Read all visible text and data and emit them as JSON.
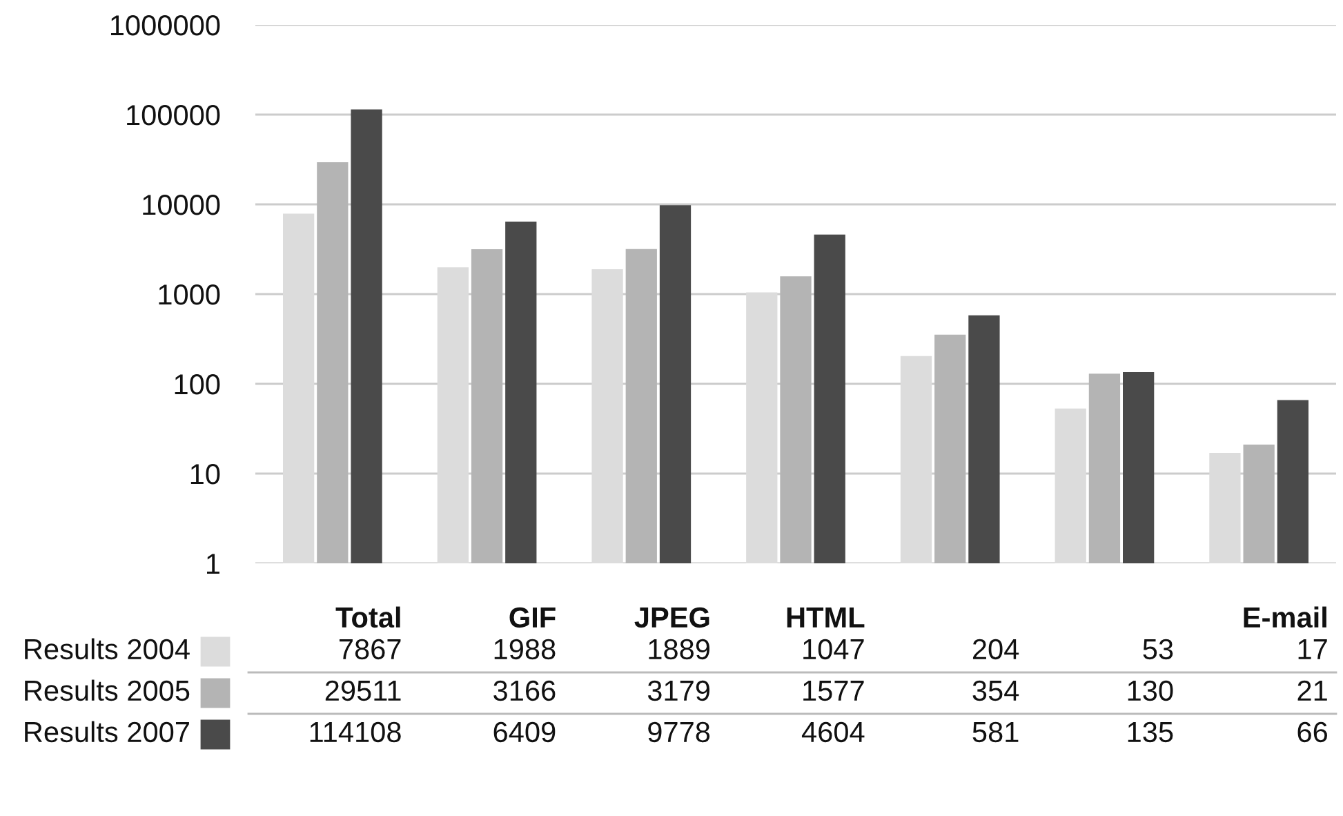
{
  "chart_data": {
    "type": "bar",
    "log": true,
    "categories": [
      "Total",
      "GIF",
      "JPEG",
      "HTML",
      null,
      null,
      "E-mail"
    ],
    "series": [
      {
        "name": "Results 2004",
        "color": "#dcdcdc",
        "values": [
          7867,
          1988,
          1889,
          1047,
          204,
          53,
          17
        ]
      },
      {
        "name": "Results 2005",
        "color": "#b4b4b4",
        "values": [
          29511,
          3166,
          3179,
          1577,
          354,
          130,
          21
        ]
      },
      {
        "name": "Results 2007",
        "color": "#4a4a4a",
        "values": [
          114108,
          6409,
          9778,
          4604,
          581,
          135,
          66
        ]
      }
    ],
    "ylim": [
      1,
      1000000
    ],
    "yticks": [
      1,
      10,
      100,
      1000,
      10000,
      100000,
      1000000
    ],
    "grid": "y",
    "legend": "bottom left",
    "data_labels": true
  }
}
